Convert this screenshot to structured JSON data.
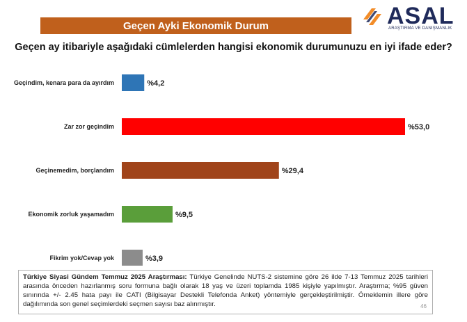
{
  "header": {
    "title": "Geçen Ayki Ekonomik Durum",
    "logo_text": "ASAL",
    "logo_subtext": "ARAŞTIRMA VE DANIŞMANLIK"
  },
  "question": "Geçen ay itibariyle aşağıdaki cümlelerden hangisi ekonomik durumunuzu en iyi ifade eder?",
  "chart_data": {
    "type": "bar",
    "orientation": "horizontal",
    "categories": [
      "Geçindim, kenara para da ayırdım",
      "Zar zor geçindim",
      "Geçinemedim, borçlandım",
      "Ekonomik zorluk yaşamadım",
      "Fikrim yok/Cevap yok"
    ],
    "values": [
      4.2,
      53.0,
      29.4,
      9.5,
      3.9
    ],
    "value_labels": [
      "%4,2",
      "%53,0",
      "%29,4",
      "%9,5",
      "%3,9"
    ],
    "colors": [
      "#2e75b6",
      "#ff0000",
      "#a0441a",
      "#5a9e3a",
      "#8c8c8c"
    ],
    "xlim": [
      0,
      53
    ],
    "grid": false
  },
  "footer": {
    "bold": "Türkiye Siyasi Gündem Temmuz 2025 Araştırması:",
    "text": " Türkiye Genelinde NUTS-2 sistemine göre 26 ilde 7-13 Temmuz 2025 tarihleri arasında önceden hazırlanmış soru formuna bağlı olarak 18 yaş ve üzeri toplamda 1985 kişiyle yapılmıştır. Araştırma; %95 güven sınırında +/- 2.45 hata payı ile CATI (Bilgisayar Destekli Telefonda Anket) yöntemiyle gerçekleştirilmiştir. Örneklemin illere göre dağılımında son genel seçimlerdeki seçmen sayısı baz alınmıştır.",
    "page": "46"
  }
}
